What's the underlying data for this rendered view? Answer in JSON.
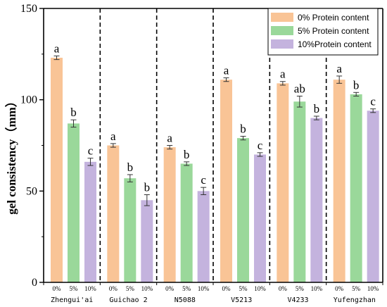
{
  "chart_data": {
    "type": "bar",
    "title": "",
    "xlabel": "",
    "ylabel": "gel consistency（mm）",
    "ylim": [
      0,
      150
    ],
    "yticks": [
      0,
      50,
      100,
      150
    ],
    "grid": false,
    "legend_position": "top-right",
    "categories": [
      "Zhengui'ai",
      "Guichao 2",
      "N5088",
      "V5213",
      "V4233",
      "Yufengzhan"
    ],
    "sub_labels": [
      "0%",
      "5%",
      "10%"
    ],
    "series": [
      {
        "name": "0%  Protein content",
        "color": "#f9c496",
        "values": [
          123,
          75,
          74,
          111,
          109,
          111
        ],
        "errors": [
          1,
          1,
          1,
          1,
          1,
          2
        ],
        "letters": [
          "a",
          "a",
          "a",
          "a",
          "a",
          "a"
        ]
      },
      {
        "name": "5%  Protein content",
        "color": "#9ad89a",
        "values": [
          87,
          57,
          65,
          79,
          99,
          103
        ],
        "errors": [
          2,
          2,
          1,
          1,
          3,
          1
        ],
        "letters": [
          "b",
          "b",
          "b",
          "b",
          "ab",
          "b"
        ]
      },
      {
        "name": "10%Protein content",
        "color": "#c4b3de",
        "values": [
          66,
          45,
          50,
          70,
          90,
          94
        ],
        "errors": [
          2,
          3,
          2,
          1,
          1,
          1
        ],
        "letters": [
          "c",
          "b",
          "c",
          "c",
          "b",
          "c"
        ]
      }
    ]
  }
}
